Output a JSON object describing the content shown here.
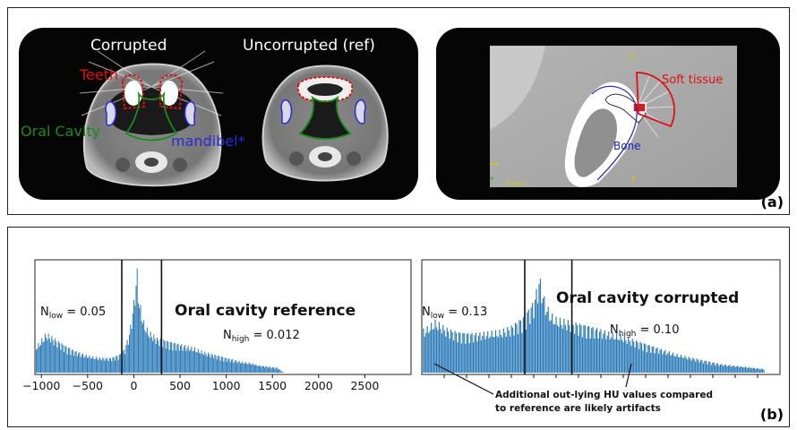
{
  "figure": {
    "panel_a": {
      "tag": "(a)",
      "ct_left": {
        "label_corrupted": "Corrupted",
        "label_reference": "Uncorrupted (ref)",
        "label_teeth": "Teeth",
        "label_oral_cavity": "Oral Cavity",
        "label_mandible": "mandibel*"
      },
      "ct_right": {
        "label_soft_tissue": "Soft tissue",
        "label_bone": "Bone",
        "marker_a": "A",
        "marker_p": "P",
        "scale_text": "5.00cm"
      },
      "colors": {
        "teeth": "#e01010",
        "oral_cavity": "#1a8a1a",
        "mandible": "#2a2ad8",
        "soft_tissue": "#e01010",
        "bone": "#2020c0"
      }
    },
    "panel_b": {
      "tag": "(b)",
      "annotation_line1": "Additional out-lying HU values compared",
      "annotation_line2": "to reference are likely artifacts",
      "bar_color": "#2878b8"
    }
  },
  "chart_data": [
    {
      "type": "bar",
      "title": "Oral cavity reference",
      "x_ticks": [
        -1000,
        -500,
        0,
        500,
        1000,
        1500,
        2000,
        2500
      ],
      "xlim": [
        -1070,
        3000
      ],
      "threshold_lines": [
        -130,
        300
      ],
      "annotations": [
        {
          "prefix": "N",
          "sub": "low",
          "text": " = 0.05"
        },
        {
          "prefix": "N",
          "sub": "high",
          "text": " = 0.012"
        }
      ],
      "series": [
        {
          "x": [
            -1050,
            -950,
            -850,
            -750,
            -650,
            -550,
            -450,
            -350,
            -250,
            -150,
            -100,
            -50,
            0,
            30,
            50,
            100,
            150,
            250,
            350,
            450,
            550,
            650,
            750,
            850,
            950,
            1050,
            1150,
            1250,
            1350,
            1450,
            1550,
            1620
          ],
          "values": [
            0.22,
            0.32,
            0.27,
            0.22,
            0.18,
            0.15,
            0.13,
            0.12,
            0.12,
            0.15,
            0.2,
            0.33,
            0.6,
            0.85,
            0.6,
            0.42,
            0.34,
            0.28,
            0.26,
            0.24,
            0.22,
            0.2,
            0.17,
            0.15,
            0.13,
            0.11,
            0.09,
            0.08,
            0.06,
            0.05,
            0.04,
            0.0
          ]
        }
      ]
    },
    {
      "type": "bar",
      "title": "Oral cavity corrupted",
      "x_ticks": [],
      "threshold_lines": [
        -130,
        300
      ],
      "annotations": [
        {
          "prefix": "N",
          "sub": "low",
          "text": " = 0.13"
        },
        {
          "prefix": "N",
          "sub": "high",
          "text": " = 0.10"
        }
      ],
      "series": [
        {
          "x": [
            -1050,
            -950,
            -850,
            -750,
            -650,
            -550,
            -450,
            -350,
            -250,
            -150,
            -50,
            0,
            50,
            100,
            150,
            250,
            350,
            450,
            550,
            650,
            750,
            850,
            950,
            1050,
            1150,
            1250,
            1350,
            1450,
            1550,
            1650,
            1750,
            1850,
            1950,
            2050
          ],
          "values": [
            0.35,
            0.42,
            0.36,
            0.33,
            0.32,
            0.32,
            0.33,
            0.34,
            0.38,
            0.45,
            0.58,
            0.78,
            0.58,
            0.48,
            0.44,
            0.42,
            0.4,
            0.38,
            0.35,
            0.32,
            0.3,
            0.27,
            0.24,
            0.21,
            0.18,
            0.15,
            0.13,
            0.11,
            0.09,
            0.07,
            0.06,
            0.05,
            0.04,
            0.03
          ]
        }
      ]
    }
  ]
}
